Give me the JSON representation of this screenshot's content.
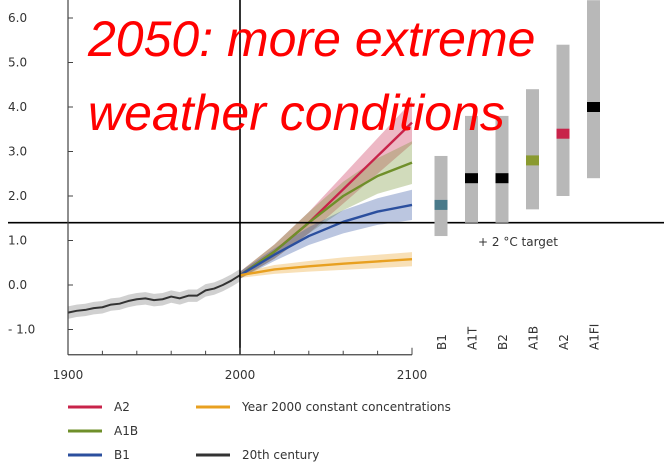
{
  "headline": {
    "line1": "2050: more extreme",
    "line2": "weather conditions"
  },
  "colors": {
    "A2": "#c8234a",
    "A1B": "#6f8f2a",
    "B1": "#2b4f9e",
    "constant": "#e8a020",
    "century20": "#333333",
    "headline": "#ff0000"
  },
  "chart_data": {
    "type": "line",
    "xlim": [
      1900,
      2100
    ],
    "ylim": [
      -1.5,
      6.5
    ],
    "x_ticks": [
      1900,
      2000,
      2100
    ],
    "x_tick_labels": [
      "1900",
      "2000",
      "2100"
    ],
    "y_ticks": [
      6.0,
      5.0,
      4.0,
      3.0,
      2.0,
      1.0,
      0.0,
      -1.0
    ],
    "y_tick_labels": [
      "6.0",
      "5.0",
      "4.0",
      "3.0",
      "2.0",
      "1.0",
      "0.0",
      "- 1.0"
    ],
    "series": [
      {
        "name": "20th century",
        "key": "century20",
        "x": [
          1900,
          1905,
          1910,
          1915,
          1920,
          1925,
          1930,
          1935,
          1940,
          1945,
          1950,
          1955,
          1960,
          1965,
          1970,
          1975,
          1980,
          1985,
          1990,
          1995,
          2000
        ],
        "y": [
          -0.62,
          -0.58,
          -0.56,
          -0.52,
          -0.5,
          -0.44,
          -0.42,
          -0.36,
          -0.32,
          -0.3,
          -0.34,
          -0.32,
          -0.26,
          -0.3,
          -0.24,
          -0.24,
          -0.12,
          -0.08,
          0.0,
          0.1,
          0.22
        ],
        "band": 0.14
      },
      {
        "name": "A2",
        "key": "A2",
        "x": [
          2000,
          2020,
          2040,
          2060,
          2080,
          2100
        ],
        "y": [
          0.22,
          0.75,
          1.4,
          2.15,
          2.9,
          3.65
        ],
        "band": [
          0.08,
          0.16,
          0.24,
          0.32,
          0.4,
          0.48
        ]
      },
      {
        "name": "A1B",
        "key": "A1B",
        "x": [
          2000,
          2020,
          2040,
          2060,
          2080,
          2100
        ],
        "y": [
          0.22,
          0.75,
          1.4,
          2.0,
          2.45,
          2.75
        ],
        "band": [
          0.08,
          0.16,
          0.24,
          0.32,
          0.4,
          0.48
        ]
      },
      {
        "name": "B1",
        "key": "B1",
        "x": [
          2000,
          2020,
          2040,
          2060,
          2080,
          2100
        ],
        "y": [
          0.22,
          0.68,
          1.1,
          1.42,
          1.65,
          1.8
        ],
        "band": [
          0.08,
          0.14,
          0.2,
          0.26,
          0.3,
          0.34
        ]
      },
      {
        "name": "Year 2000 constant concentrations",
        "key": "constant",
        "x": [
          2000,
          2020,
          2040,
          2060,
          2080,
          2100
        ],
        "y": [
          0.22,
          0.35,
          0.42,
          0.48,
          0.53,
          0.58
        ],
        "band": [
          0.06,
          0.1,
          0.12,
          0.14,
          0.15,
          0.16
        ]
      }
    ],
    "reference_lines": {
      "horizontal_y": 1.4,
      "vertical_x": 2000
    },
    "target_label": "+ 2 °C target",
    "range_bars": [
      {
        "label": "B1",
        "low": 1.1,
        "high": 2.9,
        "best": 1.8,
        "best_color": "#4a7a8a"
      },
      {
        "label": "A1T",
        "low": 1.4,
        "high": 3.8,
        "best": 2.4,
        "best_color": "#000000"
      },
      {
        "label": "B2",
        "low": 1.4,
        "high": 3.8,
        "best": 2.4,
        "best_color": "#000000"
      },
      {
        "label": "A1B",
        "low": 1.7,
        "high": 4.4,
        "best": 2.8,
        "best_color": "#8a9a30"
      },
      {
        "label": "A2",
        "low": 2.0,
        "high": 5.4,
        "best": 3.4,
        "best_color": "#c8234a"
      },
      {
        "label": "A1FI",
        "low": 2.4,
        "high": 6.4,
        "best": 4.0,
        "best_color": "#000000"
      }
    ],
    "legend": [
      {
        "label": "A2",
        "key": "A2"
      },
      {
        "label": "A1B",
        "key": "A1B"
      },
      {
        "label": "B1",
        "key": "B1"
      },
      {
        "label": "Year 2000 constant concentrations",
        "key": "constant"
      },
      {
        "label": "20th century",
        "key": "century20"
      }
    ]
  }
}
